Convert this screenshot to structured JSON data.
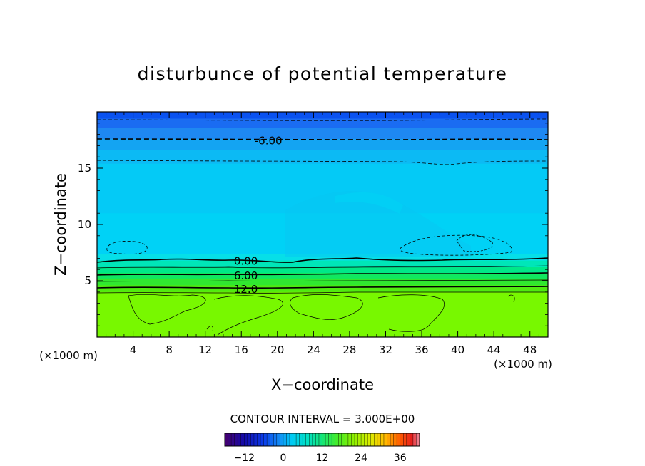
{
  "chart_data": {
    "type": "heatmap",
    "title": "disturbunce of potential temperature",
    "xlabel": "X−coordinate",
    "ylabel": "Z−coordinate",
    "x_unit": "(×1000 m)",
    "z_unit": "(×1000 m)",
    "xlim": [
      0,
      50
    ],
    "ylim": [
      0,
      20
    ],
    "x_ticks": [
      4,
      8,
      12,
      16,
      20,
      24,
      28,
      32,
      36,
      40,
      44,
      48
    ],
    "y_ticks": [
      5,
      10,
      15
    ],
    "contour_interval_text": "CONTOUR INTERVAL = 3.000E+00",
    "contour_labels": [
      {
        "text": "-6.00",
        "x": 19,
        "z": 17.5
      },
      {
        "text": "0.00",
        "x": 16.5,
        "z": 6.8
      },
      {
        "text": "6.00",
        "x": 16.5,
        "z": 5.5
      },
      {
        "text": "12.0",
        "x": 16.5,
        "z": 4.3
      }
    ],
    "layers": [
      {
        "z_top": 20.0,
        "color": "#0a52f0"
      },
      {
        "z_top": 19.4,
        "color": "#1a6cf2"
      },
      {
        "z_top": 18.6,
        "color": "#1e88f2"
      },
      {
        "z_top": 17.6,
        "color": "#14a4f2"
      },
      {
        "z_top": 16.6,
        "color": "#0cbaf4"
      },
      {
        "z_top": 15.4,
        "color": "#04caf6"
      },
      {
        "z_top": 11.0,
        "color": "#00d2f6"
      },
      {
        "z_top": 7.4,
        "color": "#06dfe8"
      },
      {
        "z_top": 6.8,
        "color": "#00e6b8"
      },
      {
        "z_top": 6.2,
        "color": "#00e888"
      },
      {
        "z_top": 5.7,
        "color": "#10e860"
      },
      {
        "z_top": 5.2,
        "color": "#30e830"
      },
      {
        "z_top": 4.6,
        "color": "#50ea10"
      },
      {
        "z_top": 4.0,
        "color": "#78f800"
      }
    ],
    "colorbar": {
      "min": -18,
      "max": 42,
      "tick_labels": [
        "−12",
        "0",
        "12",
        "24",
        "36"
      ],
      "tick_values": [
        -12,
        0,
        12,
        24,
        36
      ]
    }
  }
}
